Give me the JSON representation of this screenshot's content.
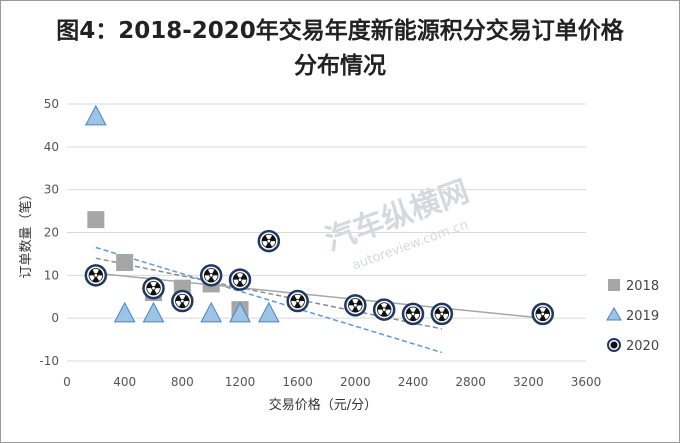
{
  "chart_data": {
    "type": "scatter",
    "title_lines": [
      "图4：2018-2020年交易年度新能源积分交易订单价格",
      "分布情况"
    ],
    "xlabel": "交易价格（元/分）",
    "ylabel": "订单数量（笔）",
    "xlim": [
      0,
      3600
    ],
    "ylim": [
      -10,
      50
    ],
    "xticks": [
      0,
      400,
      800,
      1200,
      1600,
      2000,
      2400,
      2800,
      3200,
      3600
    ],
    "yticks": [
      -10,
      0,
      10,
      20,
      30,
      40,
      50
    ],
    "grid": "horizontal",
    "legend_position": "right",
    "series": [
      {
        "name": "2018",
        "marker": "square",
        "color": "#a6a6a6",
        "points": [
          [
            200,
            23
          ],
          [
            400,
            13
          ],
          [
            600,
            6
          ],
          [
            800,
            7
          ],
          [
            1000,
            8
          ],
          [
            1200,
            2
          ]
        ]
      },
      {
        "name": "2019",
        "marker": "triangle",
        "color": "#9dc3e6",
        "points": [
          [
            200,
            47
          ],
          [
            400,
            1
          ],
          [
            600,
            1
          ],
          [
            1000,
            1
          ],
          [
            1200,
            1
          ],
          [
            1400,
            1
          ]
        ]
      },
      {
        "name": "2020",
        "marker": "radiation-circle",
        "color": "#1f3864",
        "points": [
          [
            200,
            10
          ],
          [
            600,
            7
          ],
          [
            800,
            4
          ],
          [
            1000,
            10
          ],
          [
            1200,
            9
          ],
          [
            1400,
            18
          ],
          [
            1600,
            4
          ],
          [
            2000,
            3
          ],
          [
            2200,
            2
          ],
          [
            2400,
            1
          ],
          [
            2600,
            1
          ],
          [
            3300,
            1
          ]
        ]
      }
    ],
    "trendlines": [
      {
        "series": "2018",
        "style": "dashed",
        "color": "#8c8c8c",
        "from": [
          200,
          14
        ],
        "to": [
          2600,
          -2.5
        ]
      },
      {
        "series": "2019",
        "style": "dashed",
        "color": "#5b9bd5",
        "from": [
          200,
          16.5
        ],
        "to": [
          2600,
          -8
        ]
      },
      {
        "series": "2020",
        "style": "solid",
        "color": "#a6a6a6",
        "from": [
          200,
          10.5
        ],
        "to": [
          3300,
          0
        ]
      }
    ]
  },
  "watermark": {
    "main": "汽车纵横网",
    "sub": "autoreview.com.cn"
  }
}
